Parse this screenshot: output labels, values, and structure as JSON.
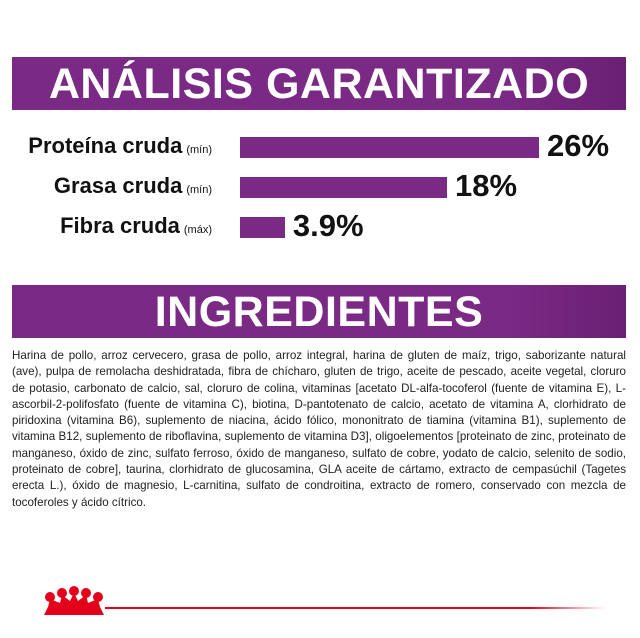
{
  "analysis": {
    "title": "ANÁLISIS GARANTIZADO",
    "rows": [
      {
        "name": "Proteína cruda",
        "qualifier": "(mín)",
        "value": 26,
        "value_label": "26%"
      },
      {
        "name": "Grasa cruda",
        "qualifier": "(mín)",
        "value": 18,
        "value_label": "18%"
      },
      {
        "name": "Fibra cruda",
        "qualifier": "(máx)",
        "value": 3.9,
        "value_label": "3.9%"
      }
    ]
  },
  "ingredients": {
    "title": "INGREDIENTES",
    "text": "Harina de pollo, arroz cervecero, grasa de pollo, arroz integral, harina de gluten de maíz, trigo, saborizante natural (ave), pulpa de remolacha deshidratada, fibra de chícharo, gluten de trigo, aceite de pescado, aceite vegetal, cloruro de potasio, carbonato de calcio, sal, cloruro de colina, vitaminas [acetato DL-alfa-tocoferol (fuente de vitamina E), L-ascorbil-2-polifosfato (fuente de vitamina C), biotina, D-pantotenato de calcio, acetato de vitamina A, clorhidrato de piridoxina (vitamina B6), suplemento de niacina, ácido fólico, mononitrato de tiamina (vitamina B1), suplemento de vitamina B12, suplemento de riboflavina, suplemento de vitamina D3], oligoelementos [proteinato de zinc, proteinato de manganeso, óxido de zinc, sulfato ferroso, óxido de manganeso, sulfato de cobre, yodato de calcio, selenito de sodio, proteinato de cobre], taurina, clorhidrato de glucosamina, GLA aceite de cártamo, extracto de cempasúchil (Tagetes erecta L.), óxido de magnesio, L-carnitina, sulfato de condroitina, extracto de romero, conservado con mezcla de tocoferoles y ácido cítrico."
  }
}
